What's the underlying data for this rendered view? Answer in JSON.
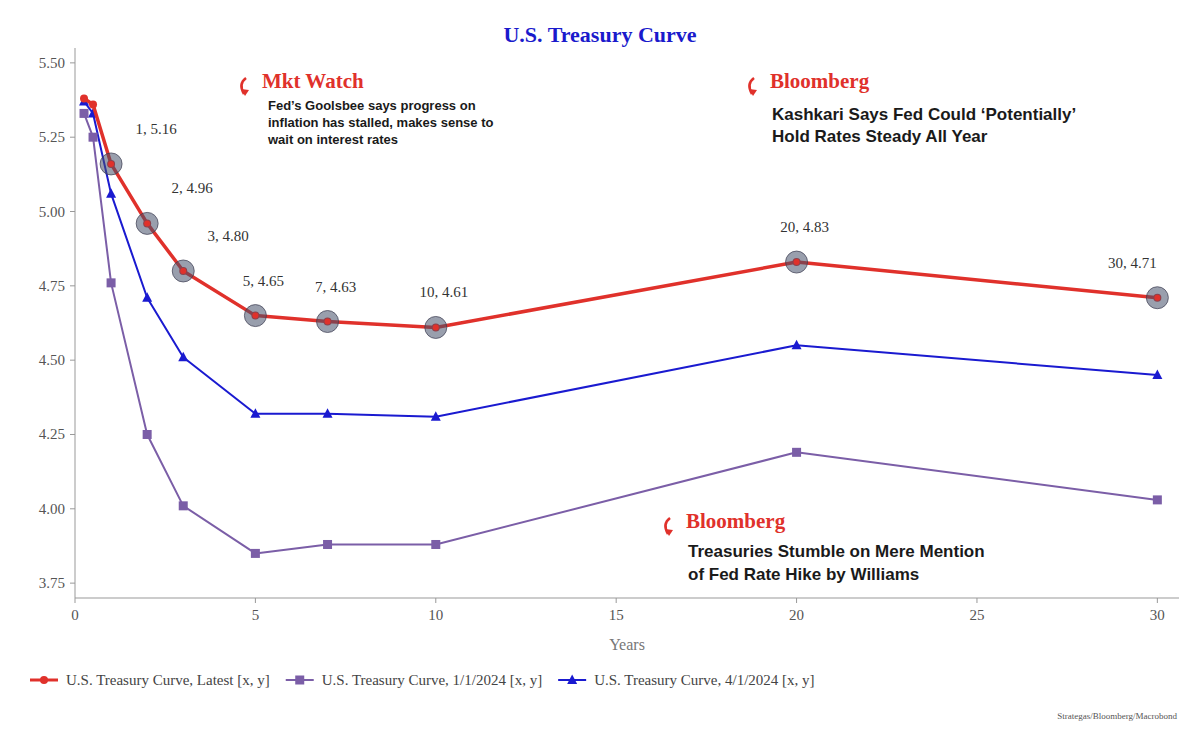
{
  "chart_data": {
    "type": "line",
    "title": "U.S. Treasury Curve",
    "x_label": "Years",
    "source": "Strategas/Bloomberg/Macrobond",
    "x": [
      0.25,
      0.5,
      1,
      2,
      3,
      5,
      7,
      10,
      20,
      30
    ],
    "xlim": [
      0,
      30.6
    ],
    "xticks": [
      0,
      5,
      10,
      15,
      20,
      25,
      30
    ],
    "ylim": [
      3.7,
      5.55
    ],
    "yticks": [
      3.75,
      {
        "value": 4,
        "label": "4.00"
      },
      4.25,
      {
        "value": 4.5,
        "label": "4.50"
      },
      4.75,
      {
        "value": 5,
        "label": "5.00"
      },
      5.25,
      {
        "value": 5.5,
        "label": "5.50"
      }
    ],
    "grid": false,
    "legend": "bottom",
    "series": [
      {
        "name": "U.S. Treasury Curve, Latest [x, y]",
        "color": "#e0312b",
        "marker": "circle",
        "line_style": "solid",
        "values": [
          5.38,
          5.36,
          5.16,
          4.96,
          4.8,
          4.65,
          4.63,
          4.61,
          4.83,
          4.71
        ],
        "value_labels": [
          null,
          null,
          "1, 5.16",
          "2, 4.96",
          "3, 4.80",
          "5, 4.65",
          "7, 4.63",
          "10, 4.61",
          "20, 4.83",
          "30, 4.71"
        ]
      },
      {
        "name": "U.S. Treasury Curve, 1/1/2024 [x, y]",
        "color": "#7b5ea7",
        "marker": "square",
        "line_style": "solid",
        "values": [
          5.33,
          5.25,
          4.76,
          4.25,
          4.01,
          3.85,
          3.88,
          3.88,
          4.19,
          4.03
        ]
      },
      {
        "name": "U.S. Treasury Curve, 4/1/2024 [x, y]",
        "color": "#1a1ad0",
        "marker": "triangle",
        "line_style": "solid",
        "values": [
          5.37,
          5.33,
          5.06,
          4.71,
          4.51,
          4.32,
          4.32,
          4.31,
          4.55,
          4.45
        ]
      }
    ],
    "annotations": [
      {
        "source": "Mkt Watch",
        "text": [
          "Fed’s Goolsbee says progress on",
          "inflation has stalled, makes sense to",
          "wait on interest rates"
        ]
      },
      {
        "source": "Bloomberg",
        "text": [
          "Kashkari Says Fed Could ‘Potentially’",
          "Hold Rates Steady All Year"
        ]
      },
      {
        "source": "Bloomberg",
        "text": [
          "Treasuries Stumble on Mere Mention",
          "of Fed Rate Hike by Williams"
        ]
      }
    ]
  }
}
